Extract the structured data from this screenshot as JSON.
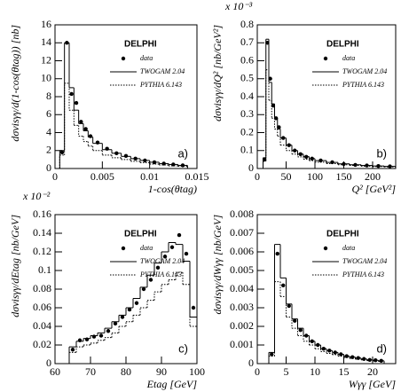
{
  "chart_data": [
    {
      "type": "histogram",
      "annotation": "DELPHI",
      "panel_label": "a)",
      "x_label": "1-cos(θtag)",
      "y_label": "dσvisγγ/d(1-cos(θtag))  [nb]",
      "bins": [
        0.0005,
        0.001,
        0.0015,
        0.002,
        0.0025,
        0.003,
        0.0035,
        0.004,
        0.005,
        0.006,
        0.007,
        0.008,
        0.009,
        0.01,
        0.011,
        0.012,
        0.013,
        0.014
      ],
      "xlim": [
        0,
        0.015
      ],
      "xticks": [
        0,
        0.005,
        0.01,
        0.015
      ],
      "ylim": [
        0,
        16
      ],
      "yticks": [
        0,
        2,
        4,
        6,
        8,
        10,
        12,
        14,
        16
      ],
      "series": [
        {
          "name": "data",
          "color": "#000000",
          "style": "points",
          "values": [
            1.8,
            14,
            8.3,
            7.3,
            5.2,
            4.4,
            3.6,
            2.9,
            2.2,
            1.7,
            1.4,
            1.1,
            0.9,
            0.7,
            0.55,
            0.45,
            0.35
          ]
        },
        {
          "name": "TWOGAM 2.04",
          "color": "#000000",
          "style": "solid",
          "values": [
            2,
            14,
            9,
            6.5,
            5,
            4.2,
            3.5,
            2.8,
            2.1,
            1.7,
            1.35,
            1.1,
            0.9,
            0.7,
            0.55,
            0.45,
            0.35
          ]
        },
        {
          "name": "PYTHIA 6.143",
          "color": "#000000",
          "style": "dotted",
          "values": [
            1.5,
            9.5,
            6.5,
            4.8,
            3.6,
            3,
            2.5,
            2,
            1.5,
            1.2,
            1,
            0.8,
            0.65,
            0.5,
            0.4,
            0.3,
            0.25
          ]
        }
      ]
    },
    {
      "type": "histogram",
      "annotation": "DELPHI",
      "panel_label": "b)",
      "multiplier": "x 10⁻³",
      "x_label": "Q² [GeV²]",
      "y_label": "dσvisγγ/dQ²  [nb/GeV²]",
      "bins": [
        10,
        15,
        20,
        25,
        30,
        35,
        40,
        50,
        60,
        70,
        80,
        90,
        100,
        120,
        140,
        160,
        180,
        200,
        220,
        240
      ],
      "xlim": [
        0,
        240
      ],
      "xticks": [
        0,
        50,
        100,
        150,
        200
      ],
      "ylim": [
        0,
        0.8
      ],
      "yticks": [
        0,
        0.1,
        0.2,
        0.3,
        0.4,
        0.5,
        0.6,
        0.7,
        0.8
      ],
      "series": [
        {
          "name": "data",
          "color": "#000000",
          "style": "points",
          "values": [
            0.05,
            0.7,
            0.5,
            0.35,
            0.28,
            0.23,
            0.17,
            0.13,
            0.1,
            0.08,
            0.065,
            0.055,
            0.045,
            0.035,
            0.025,
            0.02,
            0.017,
            0.014,
            0.012
          ]
        },
        {
          "name": "TWOGAM 2.04",
          "color": "#000000",
          "style": "solid",
          "values": [
            0.06,
            0.72,
            0.48,
            0.36,
            0.28,
            0.22,
            0.17,
            0.13,
            0.1,
            0.08,
            0.066,
            0.055,
            0.044,
            0.034,
            0.026,
            0.021,
            0.017,
            0.014,
            0.012
          ]
        },
        {
          "name": "PYTHIA 6.143",
          "color": "#000000",
          "style": "dotted",
          "values": [
            0.04,
            0.55,
            0.38,
            0.28,
            0.22,
            0.18,
            0.13,
            0.1,
            0.08,
            0.065,
            0.052,
            0.044,
            0.035,
            0.027,
            0.021,
            0.017,
            0.013,
            0.011,
            0.009
          ]
        }
      ]
    },
    {
      "type": "histogram",
      "annotation": "DELPHI",
      "panel_label": "c)",
      "multiplier": "x 10⁻²",
      "x_label": "Etag [GeV]",
      "y_label": "dσvisγγ/dEtag  [nb/GeV]",
      "bins": [
        64,
        66,
        68,
        70,
        72,
        74,
        76,
        78,
        80,
        82,
        84,
        86,
        88,
        90,
        92,
        94,
        96,
        98,
        100
      ],
      "xlim": [
        60,
        100
      ],
      "xticks": [
        60,
        70,
        80,
        90,
        100
      ],
      "ylim": [
        0,
        0.16
      ],
      "yticks": [
        0,
        0.02,
        0.04,
        0.06,
        0.08,
        0.1,
        0.12,
        0.14,
        0.16
      ],
      "series": [
        {
          "name": "data",
          "color": "#000000",
          "style": "points",
          "values": [
            0.015,
            0.025,
            0.026,
            0.029,
            0.03,
            0.035,
            0.043,
            0.05,
            0.058,
            0.065,
            0.08,
            0.09,
            0.103,
            0.115,
            0.125,
            0.138,
            0.118,
            0.06
          ]
        },
        {
          "name": "TWOGAM 2.04",
          "color": "#000000",
          "style": "solid",
          "values": [
            0.018,
            0.024,
            0.027,
            0.03,
            0.033,
            0.038,
            0.045,
            0.052,
            0.06,
            0.07,
            0.082,
            0.095,
            0.108,
            0.12,
            0.13,
            0.128,
            0.11,
            0.05
          ]
        },
        {
          "name": "PYTHIA 6.143",
          "color": "#000000",
          "style": "dotted",
          "values": [
            0.012,
            0.018,
            0.02,
            0.022,
            0.025,
            0.028,
            0.033,
            0.04,
            0.045,
            0.052,
            0.06,
            0.068,
            0.077,
            0.085,
            0.09,
            0.098,
            0.085,
            0.04
          ]
        }
      ]
    },
    {
      "type": "histogram",
      "annotation": "DELPHI",
      "panel_label": "d)",
      "x_label": "Wγγ [GeV]",
      "y_label": "dσvisγγ/dWγγ  [nb/GeV]",
      "bins": [
        2,
        3,
        4,
        5,
        6,
        7,
        8,
        9,
        10,
        11,
        12,
        13,
        14,
        15,
        16,
        17,
        18,
        19,
        20,
        21,
        22
      ],
      "xlim": [
        0,
        24
      ],
      "xticks": [
        0,
        5,
        10,
        15,
        20
      ],
      "ylim": [
        0,
        0.008
      ],
      "yticks": [
        0,
        0.001,
        0.002,
        0.003,
        0.004,
        0.005,
        0.006,
        0.007,
        0.008
      ],
      "series": [
        {
          "name": "data",
          "color": "#000000",
          "style": "points",
          "values": [
            0.0005,
            0.0059,
            0.0042,
            0.0031,
            0.0023,
            0.0018,
            0.0015,
            0.0012,
            0.001,
            0.0008,
            0.0007,
            0.0006,
            0.0005,
            0.0004,
            0.00035,
            0.0003,
            0.00025,
            0.0002,
            0.00018,
            0.00015
          ]
        },
        {
          "name": "TWOGAM 2.04",
          "color": "#000000",
          "style": "solid",
          "values": [
            0.0006,
            0.0064,
            0.0046,
            0.0032,
            0.0024,
            0.0019,
            0.0015,
            0.0012,
            0.001,
            0.0008,
            0.0007,
            0.0006,
            0.0005,
            0.0004,
            0.00035,
            0.0003,
            0.00025,
            0.0002,
            0.00018,
            0.00015
          ]
        },
        {
          "name": "PYTHIA 6.143",
          "color": "#000000",
          "style": "dotted",
          "values": [
            0.0004,
            0.0044,
            0.0036,
            0.0025,
            0.0019,
            0.0015,
            0.0012,
            0.001,
            0.0008,
            0.00065,
            0.00055,
            0.00048,
            0.0004,
            0.00033,
            0.00028,
            0.00024,
            0.0002,
            0.00016,
            0.00014,
            0.00012
          ]
        }
      ]
    }
  ]
}
